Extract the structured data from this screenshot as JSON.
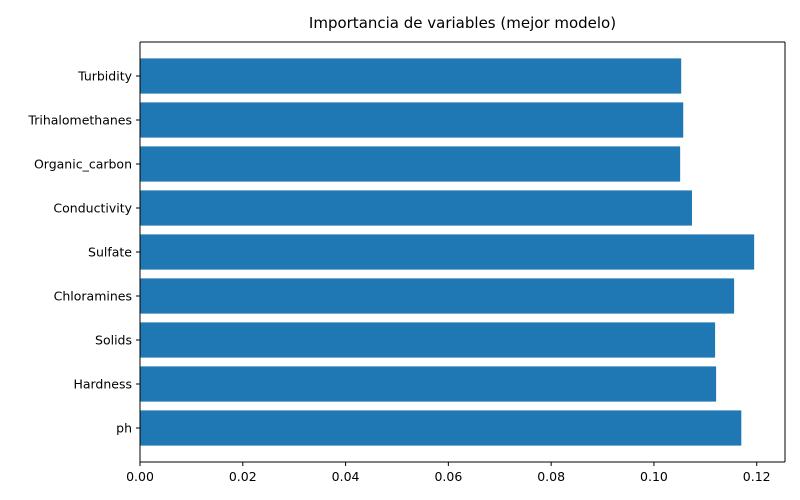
{
  "chart_data": {
    "type": "bar",
    "orientation": "horizontal",
    "title": "Importancia de variables (mejor modelo)",
    "xlabel": "",
    "ylabel": "",
    "categories": [
      "ph",
      "Hardness",
      "Solids",
      "Chloramines",
      "Sulfate",
      "Conductivity",
      "Organic_carbon",
      "Trihalomethanes",
      "Turbidity"
    ],
    "values": [
      0.117,
      0.1121,
      0.1119,
      0.1156,
      0.1195,
      0.1074,
      0.1051,
      0.1057,
      0.1053
    ],
    "xlim": [
      0,
      0.1255
    ],
    "x_ticks": [
      0.0,
      0.02,
      0.04,
      0.06,
      0.08,
      0.1,
      0.12
    ],
    "x_tick_labels": [
      "0.00",
      "0.02",
      "0.04",
      "0.06",
      "0.08",
      "0.10",
      "0.12"
    ],
    "bar_color": "#1f77b4",
    "grid": false,
    "legend": "none"
  }
}
